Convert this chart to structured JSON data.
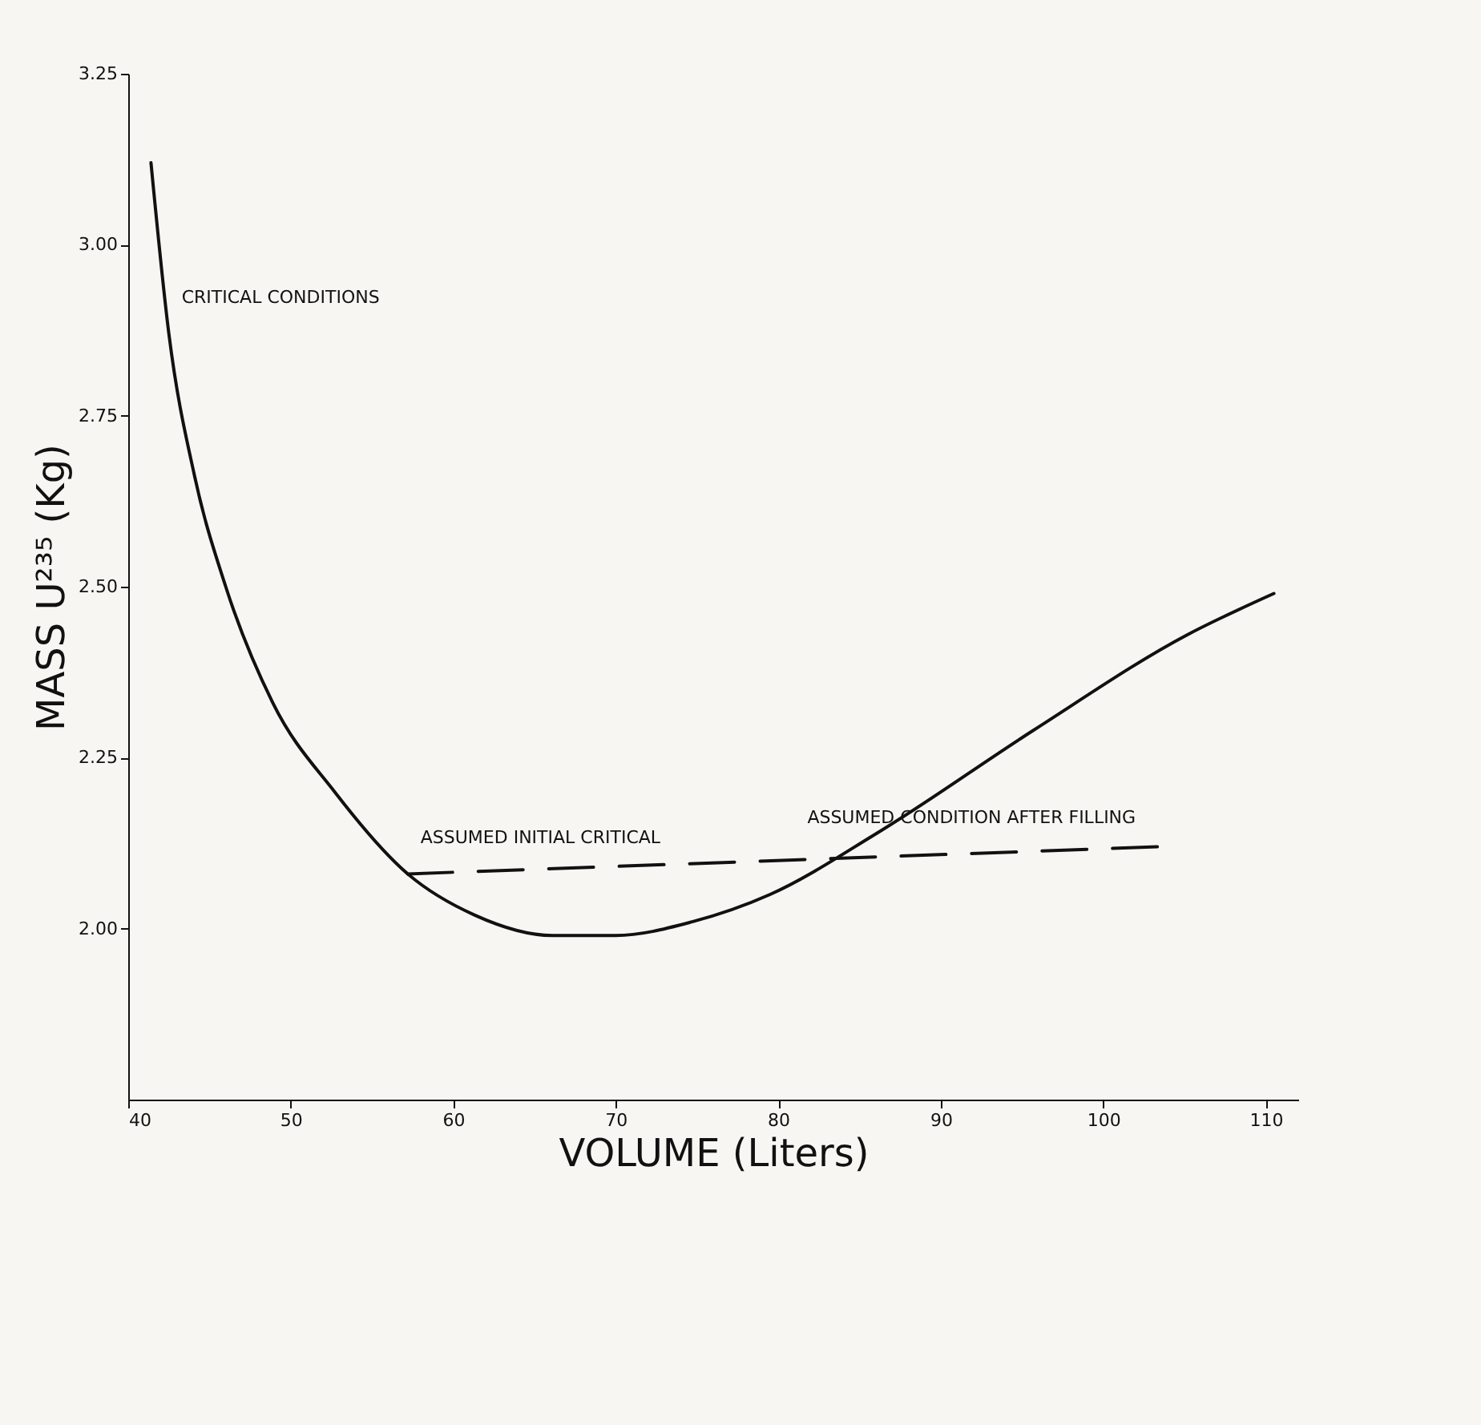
{
  "chart_data": {
    "type": "line",
    "xlabel": "VOLUME (Liters)",
    "ylabel": "MASS U²³⁵ (Kg)",
    "xlim": [
      40,
      112
    ],
    "xticks": [
      40,
      50,
      60,
      70,
      80,
      90,
      100,
      110
    ],
    "ylim": [
      1.75,
      3.25
    ],
    "yticks": [
      {
        "value": 2,
        "label": "2.00"
      },
      {
        "value": 2.25,
        "label": "2.25"
      },
      {
        "value": 2.5,
        "label": "2.50"
      },
      {
        "value": 2.75,
        "label": "2.75"
      },
      {
        "value": 3,
        "label": "3.00"
      },
      {
        "value": 3.25,
        "label": "3.25"
      }
    ],
    "grid": false,
    "marker": "none",
    "series": [
      {
        "color": "#111111",
        "line_style": "solid",
        "x": [
          41.4,
          42.5,
          44.1,
          46.0,
          48.9,
          52.7,
          57.2,
          61.3,
          66.1,
          70,
          74.7,
          79.5,
          86.1,
          95.7,
          105.2,
          110.5
        ],
        "values": [
          3.12,
          2.87,
          2.66,
          2.5,
          2.33,
          2.2,
          2.08,
          2.02,
          1.99,
          1.99,
          2.01,
          2.05,
          2.14,
          2.29,
          2.43,
          2.49
        ]
      },
      {
        "color": "#111111",
        "line_style": "dashed",
        "x": [
          57.2,
          103.7
        ],
        "values": [
          2.08,
          2.12
        ]
      }
    ],
    "annotations": [
      {
        "text": "CRITICAL CONDITIONS",
        "x": 42.5,
        "y": 2.87
      },
      {
        "text": "ASSUMED INITIAL CRITICAL",
        "x": 57.2,
        "y": 2.08
      },
      {
        "text": "ASSUMED CONDITION AFTER FILLING",
        "x": 81,
        "y": 2.11
      }
    ]
  }
}
